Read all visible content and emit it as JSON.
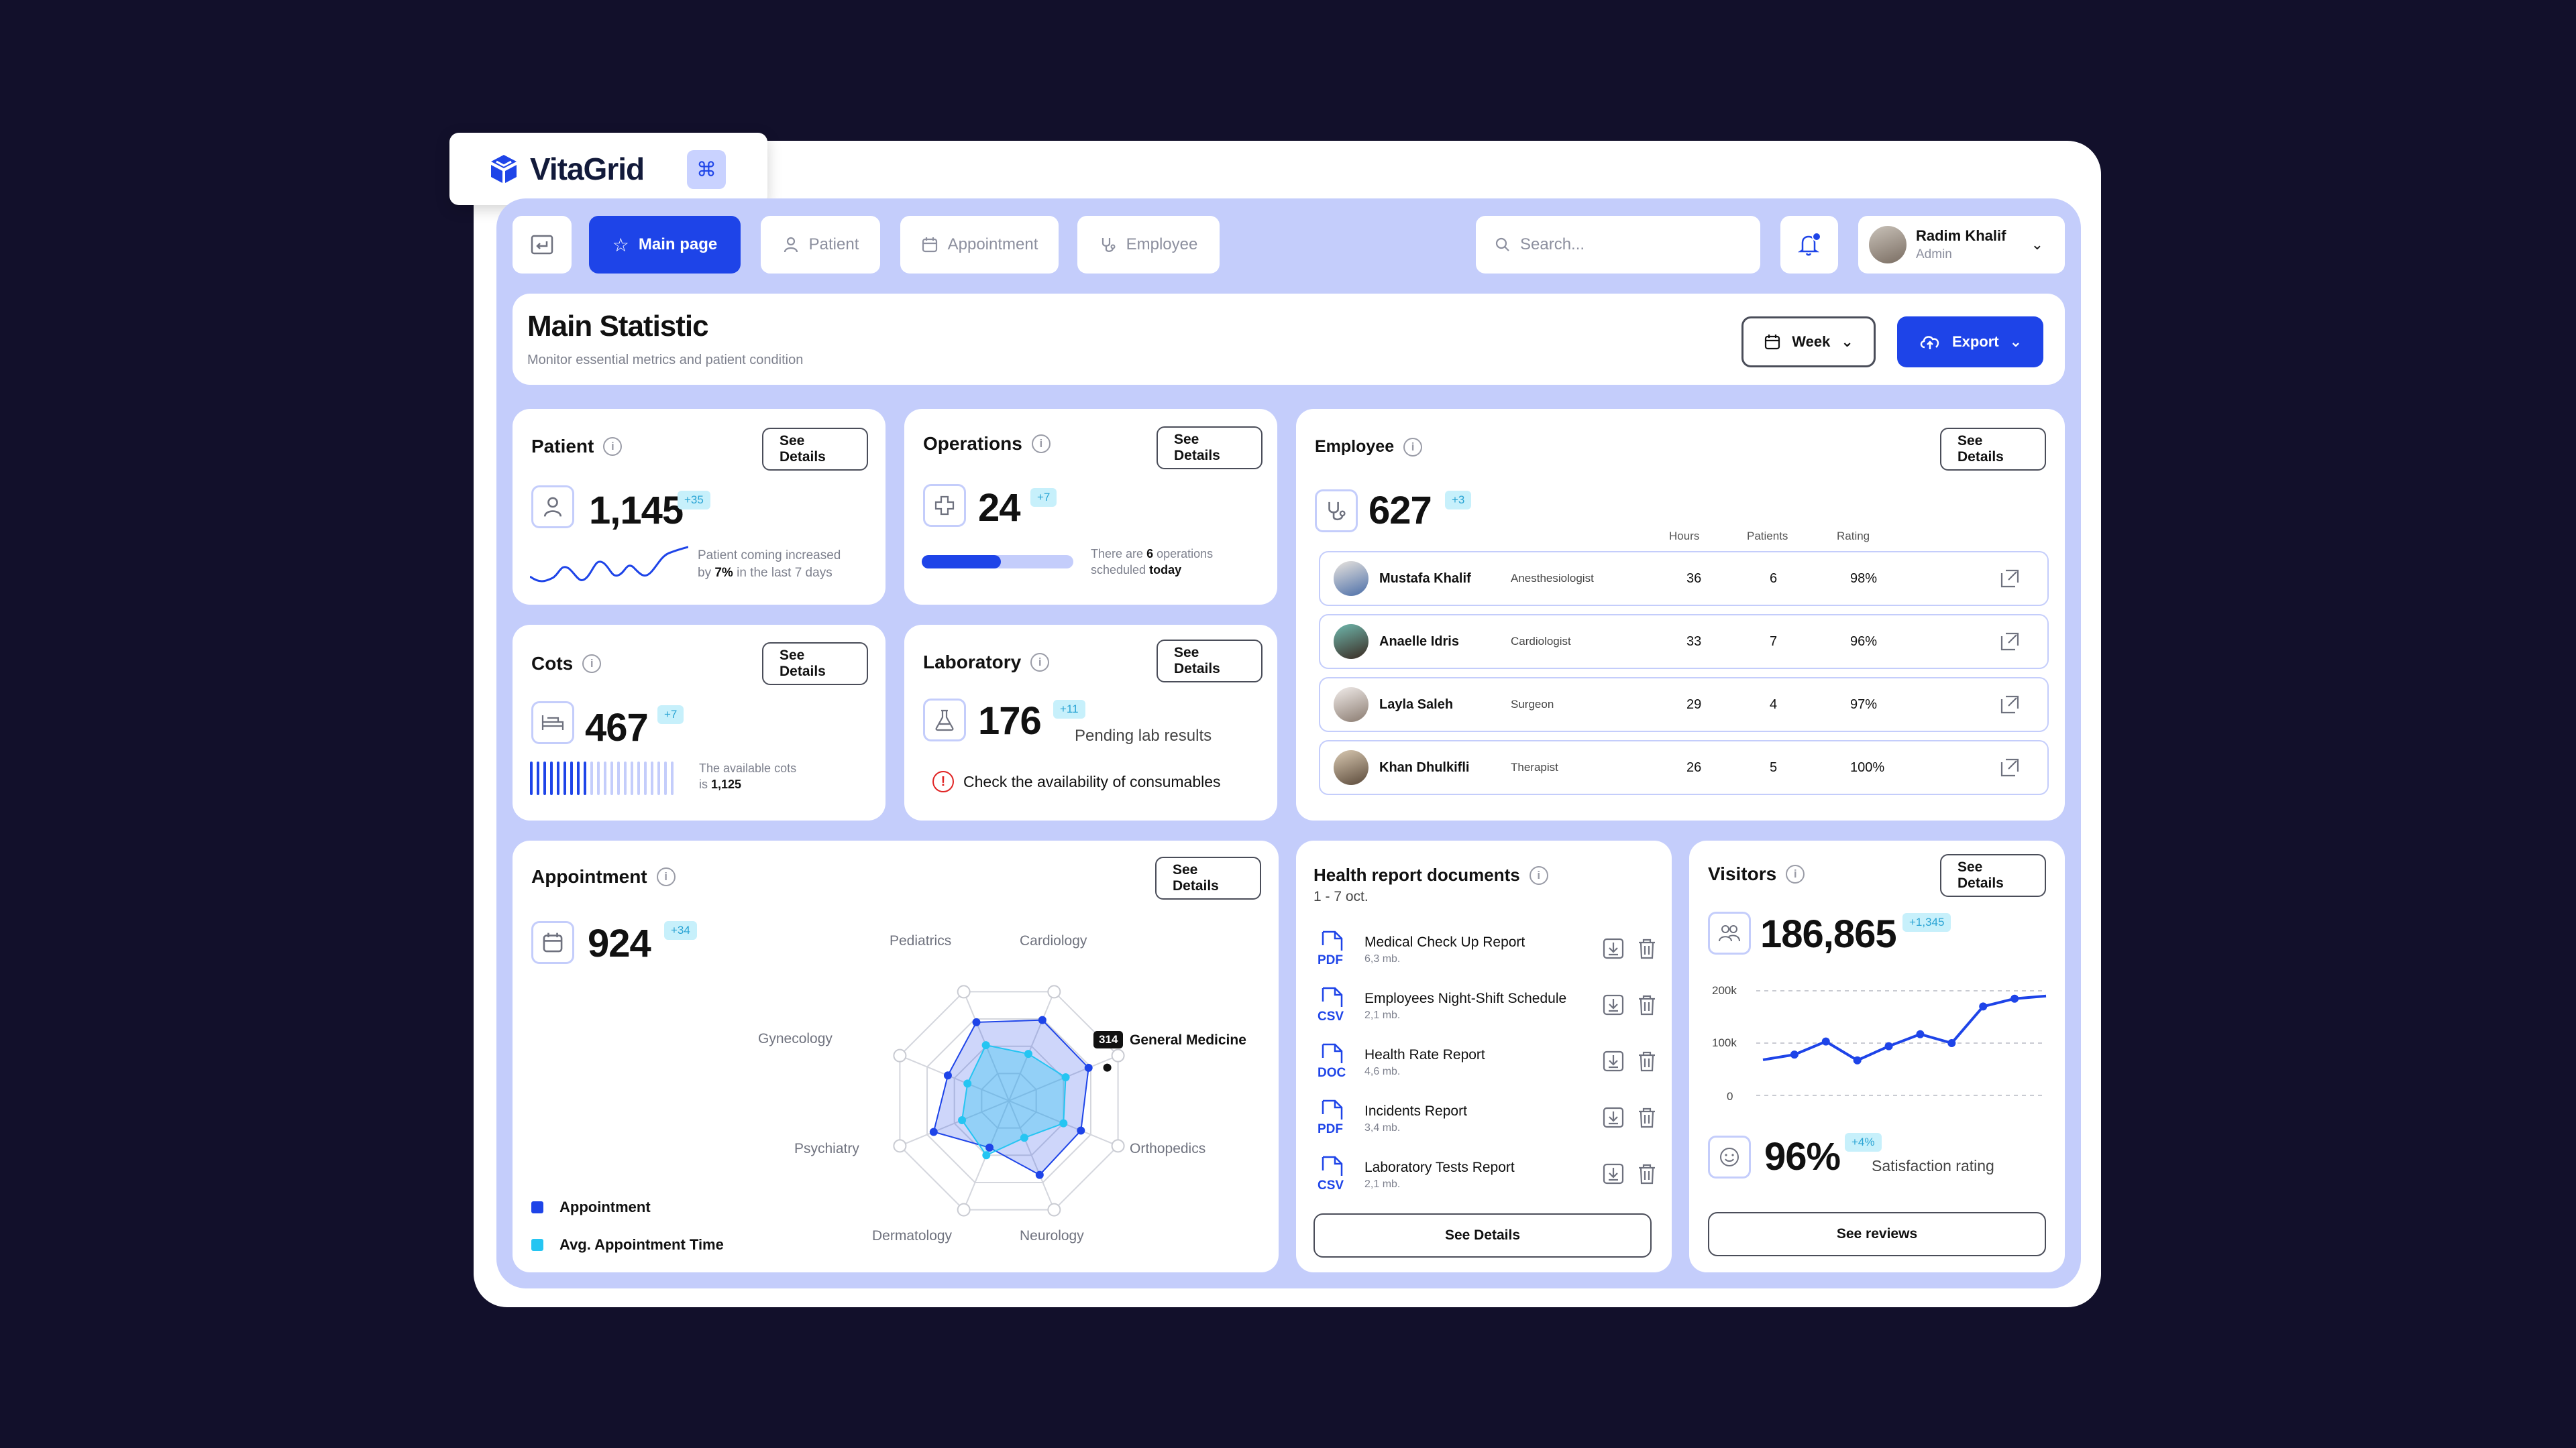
{
  "brand": {
    "name": "VitaGrid"
  },
  "nav": {
    "tabs": [
      {
        "label": "Main page",
        "icon": "star-icon",
        "active": true
      },
      {
        "label": "Patient",
        "icon": "user-icon",
        "active": false
      },
      {
        "label": "Appointment",
        "icon": "calendar-icon",
        "active": false
      },
      {
        "label": "Employee",
        "icon": "stethoscope-icon",
        "active": false
      }
    ],
    "search_placeholder": "Search...",
    "user": {
      "name": "Radim Khalif",
      "role": "Admin"
    }
  },
  "header": {
    "title": "Main Statistic",
    "subtitle": "Monitor essential metrics and patient condition",
    "period": "Week",
    "export_label": "Export"
  },
  "see_details": "See Details",
  "patient": {
    "title": "Patient",
    "value": "1,145",
    "delta": "+35",
    "note_pre": "Patient coming increased",
    "note_by": "by",
    "note_pct": "7%",
    "note_post": "in the last 7 days"
  },
  "operations": {
    "title": "Operations",
    "value": "24",
    "delta": "+7",
    "note_pre": "There are",
    "note_num": "6",
    "note_mid": "operations",
    "note_pre2": "scheduled",
    "note_today": "today",
    "progress": 0.52
  },
  "cots": {
    "title": "Cots",
    "value": "467",
    "delta": "+7",
    "note": "The available cots",
    "note_is": "is",
    "note_total": "1,125",
    "fill_fraction": 0.415
  },
  "laboratory": {
    "title": "Laboratory",
    "value": "176",
    "delta": "+11",
    "pending": "Pending lab results",
    "warning": "Check the availability of consumables"
  },
  "employee": {
    "title": "Employee",
    "value": "627",
    "delta": "+3",
    "columns": [
      "Hours",
      "Patients",
      "Rating"
    ],
    "rows": [
      {
        "name": "Mustafa Khalif",
        "role": "Anesthesiologist",
        "hours": "36",
        "patients": "6",
        "rating": "98%"
      },
      {
        "name": "Anaelle Idris",
        "role": "Cardiologist",
        "hours": "33",
        "patients": "7",
        "rating": "96%"
      },
      {
        "name": "Layla Saleh",
        "role": "Surgeon",
        "hours": "29",
        "patients": "4",
        "rating": "97%"
      },
      {
        "name": "Khan Dhulkifli",
        "role": "Therapist",
        "hours": "26",
        "patients": "5",
        "rating": "100%"
      }
    ]
  },
  "appointment": {
    "title": "Appointment",
    "value": "924",
    "delta": "+34",
    "legend": [
      {
        "label": "Appointment",
        "color": "#1e44e8"
      },
      {
        "label": "Avg. Appointment Time",
        "color": "#25c5f2"
      }
    ],
    "tooltip_value": "314"
  },
  "chart_data": [
    {
      "type": "radar",
      "categories": [
        "Cardiology",
        "General Medicine",
        "Orthopedics",
        "Neurology",
        "Dermatology",
        "Psychiatry",
        "Gynecology",
        "Pediatrics"
      ],
      "series": [
        {
          "name": "Appointment",
          "values": [
            0.74,
            0.73,
            0.66,
            0.68,
            0.43,
            0.69,
            0.56,
            0.72
          ]
        },
        {
          "name": "Avg. Appointment Time",
          "values": [
            0.43,
            0.52,
            0.5,
            0.34,
            0.5,
            0.43,
            0.38,
            0.51
          ]
        }
      ],
      "annotation": {
        "category": "General Medicine",
        "value": "314"
      }
    },
    {
      "type": "line",
      "y_ticks": [
        "200k",
        "100k",
        "0"
      ],
      "ylim": [
        0,
        200000
      ],
      "values": [
        68000,
        78000,
        103000,
        67000,
        94000,
        117000,
        100000,
        170000,
        185000,
        190000
      ],
      "grid": true
    }
  ],
  "health_docs": {
    "title": "Health report documents",
    "range": "1 - 7 oct.",
    "items": [
      {
        "name": "Medical Check Up Report",
        "size": "6,3 mb.",
        "type": "PDF"
      },
      {
        "name": "Employees Night-Shift Schedule",
        "size": "2,1 mb.",
        "type": "CSV"
      },
      {
        "name": "Health Rate Report",
        "size": "4,6 mb.",
        "type": "DOC"
      },
      {
        "name": "Incidents Report",
        "size": "3,4 mb.",
        "type": "PDF"
      },
      {
        "name": "Laboratory Tests Report",
        "size": "2,1 mb.",
        "type": "CSV"
      }
    ]
  },
  "visitors": {
    "title": "Visitors",
    "value": "186,865",
    "delta": "+1,345",
    "satisfaction_value": "96%",
    "satisfaction_delta": "+4%",
    "satisfaction_label": "Satisfaction rating",
    "reviews_label": "See reviews"
  },
  "colors": {
    "accent": "#1e44e8",
    "panel": "#c4cdfb",
    "cyan": "#25c5f2",
    "background": "#12102b"
  }
}
